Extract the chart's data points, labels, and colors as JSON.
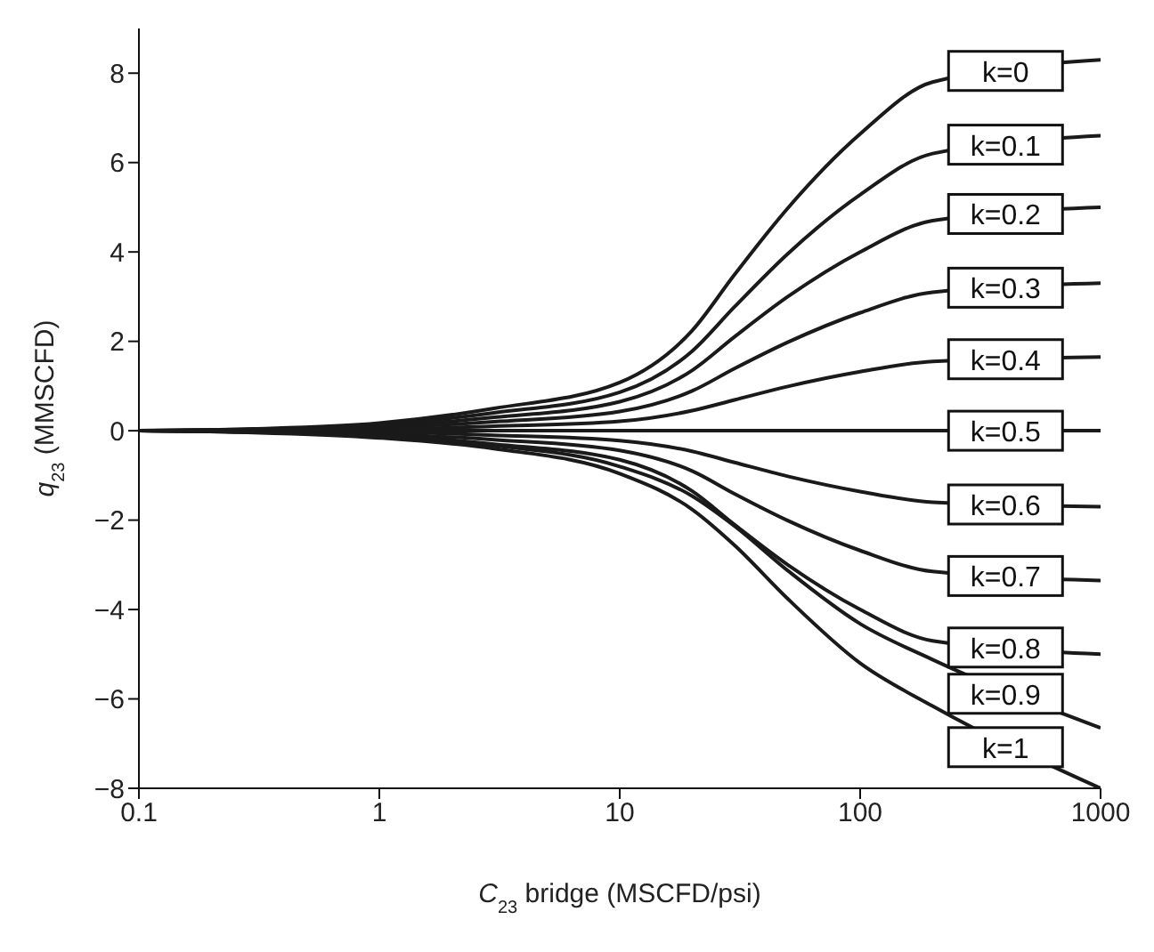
{
  "chart_data": {
    "type": "line",
    "xlabel": "C$_{23}$ bridge (MSCFD/psi)",
    "ylabel": "q$_{23}$ (MMSCFD)",
    "log": "x",
    "xlim": [
      0.1,
      1000
    ],
    "xticks": [
      0.1,
      1,
      10,
      100,
      1000
    ],
    "ylim": [
      -8,
      9
    ],
    "yticks": [
      -8,
      -6,
      -4,
      -2,
      0,
      2,
      4,
      6,
      8
    ],
    "grid": false,
    "legend": "right",
    "marker": "none",
    "x": [
      0.1,
      0.3,
      1,
      3,
      10,
      20,
      30,
      50,
      100,
      200,
      1000
    ],
    "series": [
      {
        "name": "k=0",
        "color": "#1a1a1a",
        "values": [
          0,
          0.04,
          0.17,
          0.5,
          1.08,
          2.24,
          3.49,
          4.98,
          6.64,
          7.8,
          8.3
        ]
      },
      {
        "name": "k=0.1",
        "color": "#1a1a1a",
        "values": [
          0,
          0.03,
          0.13,
          0.4,
          0.86,
          1.78,
          2.77,
          3.96,
          5.28,
          6.2,
          6.6
        ]
      },
      {
        "name": "k=0.2",
        "color": "#1a1a1a",
        "values": [
          0,
          0.03,
          0.1,
          0.3,
          0.65,
          1.35,
          2.1,
          3,
          4,
          4.7,
          5
        ]
      },
      {
        "name": "k=0.3",
        "color": "#1a1a1a",
        "values": [
          0,
          0.02,
          0.07,
          0.2,
          0.43,
          0.89,
          1.39,
          1.98,
          2.64,
          3.1,
          3.3
        ]
      },
      {
        "name": "k=0.4",
        "color": "#1a1a1a",
        "values": [
          0,
          0.01,
          0.03,
          0.1,
          0.21,
          0.45,
          0.69,
          0.99,
          1.32,
          1.55,
          1.65
        ]
      },
      {
        "name": "k=0.5",
        "color": "#1a1a1a",
        "values": [
          0,
          0,
          0,
          0,
          0,
          0,
          0,
          0,
          0,
          0,
          0
        ]
      },
      {
        "name": "k=0.6",
        "color": "#1a1a1a",
        "values": [
          0,
          -0.01,
          -0.03,
          -0.1,
          -0.22,
          -0.46,
          -0.71,
          -1.02,
          -1.36,
          -1.6,
          -1.7
        ]
      },
      {
        "name": "k=0.7",
        "color": "#1a1a1a",
        "values": [
          0,
          -0.02,
          -0.07,
          -0.2,
          -0.44,
          -0.9,
          -1.41,
          -2.01,
          -2.68,
          -3.15,
          -3.35
        ]
      },
      {
        "name": "k=0.8",
        "color": "#1a1a1a",
        "values": [
          0,
          -0.03,
          -0.1,
          -0.3,
          -0.65,
          -1.35,
          -2.1,
          -3,
          -4,
          -4.7,
          -5
        ]
      },
      {
        "name": "k=0.9",
        "color": "#1a1a1a",
        "values": [
          0,
          -0.03,
          -0.13,
          -0.33,
          -0.8,
          -1.46,
          -2.13,
          -3.13,
          -4.32,
          -5.12,
          -6.65
        ]
      },
      {
        "name": "k=1",
        "color": "#1a1a1a",
        "values": [
          0,
          -0.04,
          -0.16,
          -0.4,
          -0.96,
          -1.76,
          -2.56,
          -3.76,
          -5.2,
          -6.16,
          -8
        ]
      }
    ]
  }
}
